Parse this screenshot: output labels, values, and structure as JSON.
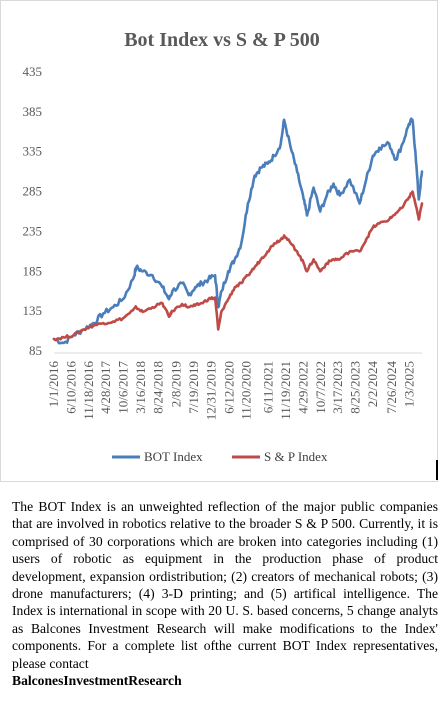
{
  "chart_data": {
    "type": "line",
    "title": "Bot Index vs S & P 500",
    "xlabel": "",
    "ylabel": "",
    "ylim": [
      85,
      435
    ],
    "y_ticks": [
      85,
      135,
      185,
      235,
      285,
      335,
      385,
      435
    ],
    "x_ticks": [
      "1/1/2016",
      "6/10/2016",
      "11/18/2016",
      "4/28/2017",
      "10/6/2017",
      "3/16/2018",
      "8/24/2018",
      "2/8/2019",
      "7/19/2019",
      "12/31/2019",
      "6/12/2020",
      "11/20/2020",
      "6/11/2021",
      "11/19/2021",
      "4/29/2022",
      "10/7/2022",
      "3/17/2023",
      "8/25/2023",
      "2/2/2024",
      "7/26/2024",
      "1/3/2025"
    ],
    "x": [
      "2016-01",
      "2016-04",
      "2016-07",
      "2016-10",
      "2017-01",
      "2017-04",
      "2017-07",
      "2017-10",
      "2018-01",
      "2018-02",
      "2018-04",
      "2018-07",
      "2018-10",
      "2018-12",
      "2019-01",
      "2019-04",
      "2019-06",
      "2019-08",
      "2019-10",
      "2019-12",
      "2020-02",
      "2020-03",
      "2020-04",
      "2020-06",
      "2020-08",
      "2020-10",
      "2020-12",
      "2021-02",
      "2021-04",
      "2021-06",
      "2021-08",
      "2021-10",
      "2021-11",
      "2022-01",
      "2022-03",
      "2022-05",
      "2022-06",
      "2022-08",
      "2022-10",
      "2022-12",
      "2023-02",
      "2023-04",
      "2023-07",
      "2023-10",
      "2023-12",
      "2024-02",
      "2024-04",
      "2024-07",
      "2024-09",
      "2024-11",
      "2025-01",
      "2025-02",
      "2025-03",
      "2025-04",
      "2025-05"
    ],
    "series": [
      {
        "name": "BOT Index",
        "color": "#4a7ebb",
        "values": [
          100,
          95,
          105,
          112,
          120,
          132,
          140,
          150,
          175,
          190,
          185,
          180,
          165,
          150,
          160,
          170,
          155,
          165,
          170,
          175,
          180,
          140,
          160,
          185,
          200,
          220,
          270,
          305,
          315,
          320,
          330,
          345,
          375,
          340,
          310,
          275,
          255,
          290,
          260,
          280,
          295,
          280,
          300,
          270,
          300,
          330,
          340,
          345,
          325,
          345,
          370,
          375,
          335,
          275,
          310
        ]
      },
      {
        "name": "S & P Index",
        "color": "#be4b48",
        "values": [
          100,
          102,
          105,
          112,
          117,
          120,
          122,
          126,
          136,
          140,
          134,
          140,
          145,
          128,
          135,
          144,
          140,
          142,
          145,
          150,
          152,
          112,
          135,
          150,
          165,
          170,
          180,
          190,
          200,
          210,
          220,
          225,
          230,
          220,
          210,
          195,
          185,
          200,
          185,
          195,
          200,
          200,
          210,
          210,
          225,
          240,
          245,
          250,
          258,
          265,
          278,
          285,
          270,
          250,
          270
        ]
      }
    ],
    "legend_position": "bottom",
    "grid": false
  },
  "description": {
    "paragraph": "The BOT Index is an unweighted reflection of the major public companies that are involved in robotics relative to the broader S & P 500. Currently, it is comprised of 30 corporations which are broken into categories including (1) users of robotic as equipment in the production phase of product development, expansion ordistribution; (2) creators of mechanical robots; (3) drone manufacturers; (4) 3-D printing; and (5) artifical intelligence. The Index is international in scope with 20 U. S. based concerns, 5 change analyts as Balcones Investment Research will make modifications to the Index' components. For a  complete list ofthe current BOT Index representatives, please contact",
    "bold": "BalconesInvestmentResearch"
  }
}
